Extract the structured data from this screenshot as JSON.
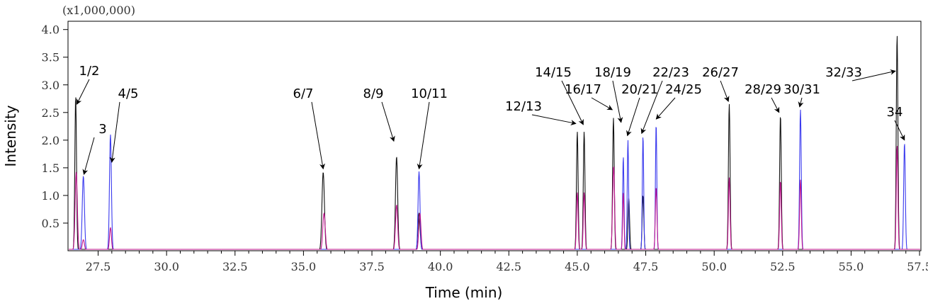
{
  "chart_data": {
    "type": "line",
    "multiplier_label": "(x1,000,000)",
    "xlabel": "Time (min)",
    "ylabel": "Intensity",
    "xlim": [
      26.4,
      57.55
    ],
    "ylim": [
      0,
      4.15
    ],
    "x_ticks": [
      27.5,
      30.0,
      32.5,
      35.0,
      37.5,
      40.0,
      42.5,
      45.0,
      47.5,
      50.0,
      52.5,
      55.0,
      57.5
    ],
    "x_tick_labels": [
      "27.5",
      "30.0",
      "32.5",
      "35.0",
      "37.5",
      "40.0",
      "42.5",
      "45.0",
      "47.5",
      "50.0",
      "52.5",
      "55.0",
      "57.5"
    ],
    "y_ticks": [
      0.5,
      1.0,
      1.5,
      2.0,
      2.5,
      3.0,
      3.5,
      4.0
    ],
    "y_tick_labels": [
      "0.5",
      "1.0",
      "1.5",
      "2.0",
      "2.5",
      "3.0",
      "3.5",
      "4.0"
    ],
    "colors": {
      "black": "#111111",
      "blue": "#3a3aee",
      "magenta": "#c0158f"
    },
    "series": [
      {
        "color": "black",
        "peaks": [
          {
            "t": 26.68,
            "h": 2.8,
            "w": 0.03
          },
          {
            "t": 35.72,
            "h": 1.42,
            "w": 0.045
          },
          {
            "t": 38.4,
            "h": 1.7,
            "w": 0.04
          },
          {
            "t": 39.22,
            "h": 0.68,
            "w": 0.04
          },
          {
            "t": 45.0,
            "h": 2.15,
            "w": 0.03
          },
          {
            "t": 45.25,
            "h": 2.15,
            "w": 0.03
          },
          {
            "t": 46.32,
            "h": 2.4,
            "w": 0.03
          },
          {
            "t": 46.88,
            "h": 0.95,
            "w": 0.03
          },
          {
            "t": 47.4,
            "h": 1.0,
            "w": 0.03
          },
          {
            "t": 50.55,
            "h": 2.65,
            "w": 0.03
          },
          {
            "t": 52.42,
            "h": 2.45,
            "w": 0.03
          },
          {
            "t": 56.68,
            "h": 3.9,
            "w": 0.03
          }
        ]
      },
      {
        "color": "blue",
        "peaks": [
          {
            "t": 26.96,
            "h": 1.35,
            "w": 0.04
          },
          {
            "t": 27.95,
            "h": 2.1,
            "w": 0.035
          },
          {
            "t": 39.22,
            "h": 1.43,
            "w": 0.035
          },
          {
            "t": 46.68,
            "h": 1.7,
            "w": 0.025
          },
          {
            "t": 46.85,
            "h": 2.0,
            "w": 0.025
          },
          {
            "t": 47.4,
            "h": 2.08,
            "w": 0.025
          },
          {
            "t": 47.88,
            "h": 2.3,
            "w": 0.025
          },
          {
            "t": 53.15,
            "h": 2.55,
            "w": 0.03
          },
          {
            "t": 56.95,
            "h": 1.95,
            "w": 0.03
          }
        ]
      },
      {
        "color": "magenta",
        "peaks": [
          {
            "t": 26.7,
            "h": 1.42,
            "w": 0.04
          },
          {
            "t": 26.96,
            "h": 0.2,
            "w": 0.04
          },
          {
            "t": 27.95,
            "h": 0.42,
            "w": 0.035
          },
          {
            "t": 35.75,
            "h": 0.68,
            "w": 0.045
          },
          {
            "t": 38.4,
            "h": 0.83,
            "w": 0.04
          },
          {
            "t": 39.25,
            "h": 0.68,
            "w": 0.04
          },
          {
            "t": 45.0,
            "h": 1.05,
            "w": 0.03
          },
          {
            "t": 45.25,
            "h": 1.05,
            "w": 0.03
          },
          {
            "t": 46.3,
            "h": 0.65,
            "w": 0.03
          },
          {
            "t": 46.34,
            "h": 1.2,
            "w": 0.03
          },
          {
            "t": 46.68,
            "h": 1.05,
            "w": 0.025
          },
          {
            "t": 47.88,
            "h": 1.15,
            "w": 0.03
          },
          {
            "t": 50.55,
            "h": 1.32,
            "w": 0.03
          },
          {
            "t": 52.42,
            "h": 1.26,
            "w": 0.03
          },
          {
            "t": 53.15,
            "h": 1.28,
            "w": 0.03
          },
          {
            "t": 56.68,
            "h": 1.9,
            "w": 0.03
          }
        ]
      }
    ],
    "annotations": [
      {
        "text": "1/2",
        "at": [
          26.72,
          2.65
        ]
      },
      {
        "text": "3",
        "at": [
          26.98,
          1.38
        ]
      },
      {
        "text": "4/5",
        "at": [
          28.0,
          1.6
        ]
      },
      {
        "text": "6/7",
        "at": [
          35.72,
          1.48
        ]
      },
      {
        "text": "8/9",
        "at": [
          38.3,
          1.98
        ]
      },
      {
        "text": "10/11",
        "at": [
          39.22,
          1.48
        ]
      },
      {
        "text": "12/13",
        "at": [
          44.95,
          2.3
        ]
      },
      {
        "text": "14/15",
        "at": [
          45.22,
          2.28
        ]
      },
      {
        "text": "16/17",
        "at": [
          46.28,
          2.55
        ]
      },
      {
        "text": "18/19",
        "at": [
          46.6,
          2.32
        ]
      },
      {
        "text": "20/21",
        "at": [
          46.83,
          2.08
        ]
      },
      {
        "text": "22/23",
        "at": [
          47.35,
          2.12
        ]
      },
      {
        "text": "24/25",
        "at": [
          47.88,
          2.38
        ]
      },
      {
        "text": "26/27",
        "at": [
          50.52,
          2.7
        ]
      },
      {
        "text": "28/29",
        "at": [
          52.37,
          2.5
        ]
      },
      {
        "text": "30/31",
        "at": [
          53.12,
          2.6
        ]
      },
      {
        "text": "32/33",
        "at": [
          56.62,
          3.25
        ]
      },
      {
        "text": "34",
        "at": [
          56.95,
          2.0
        ]
      }
    ]
  }
}
